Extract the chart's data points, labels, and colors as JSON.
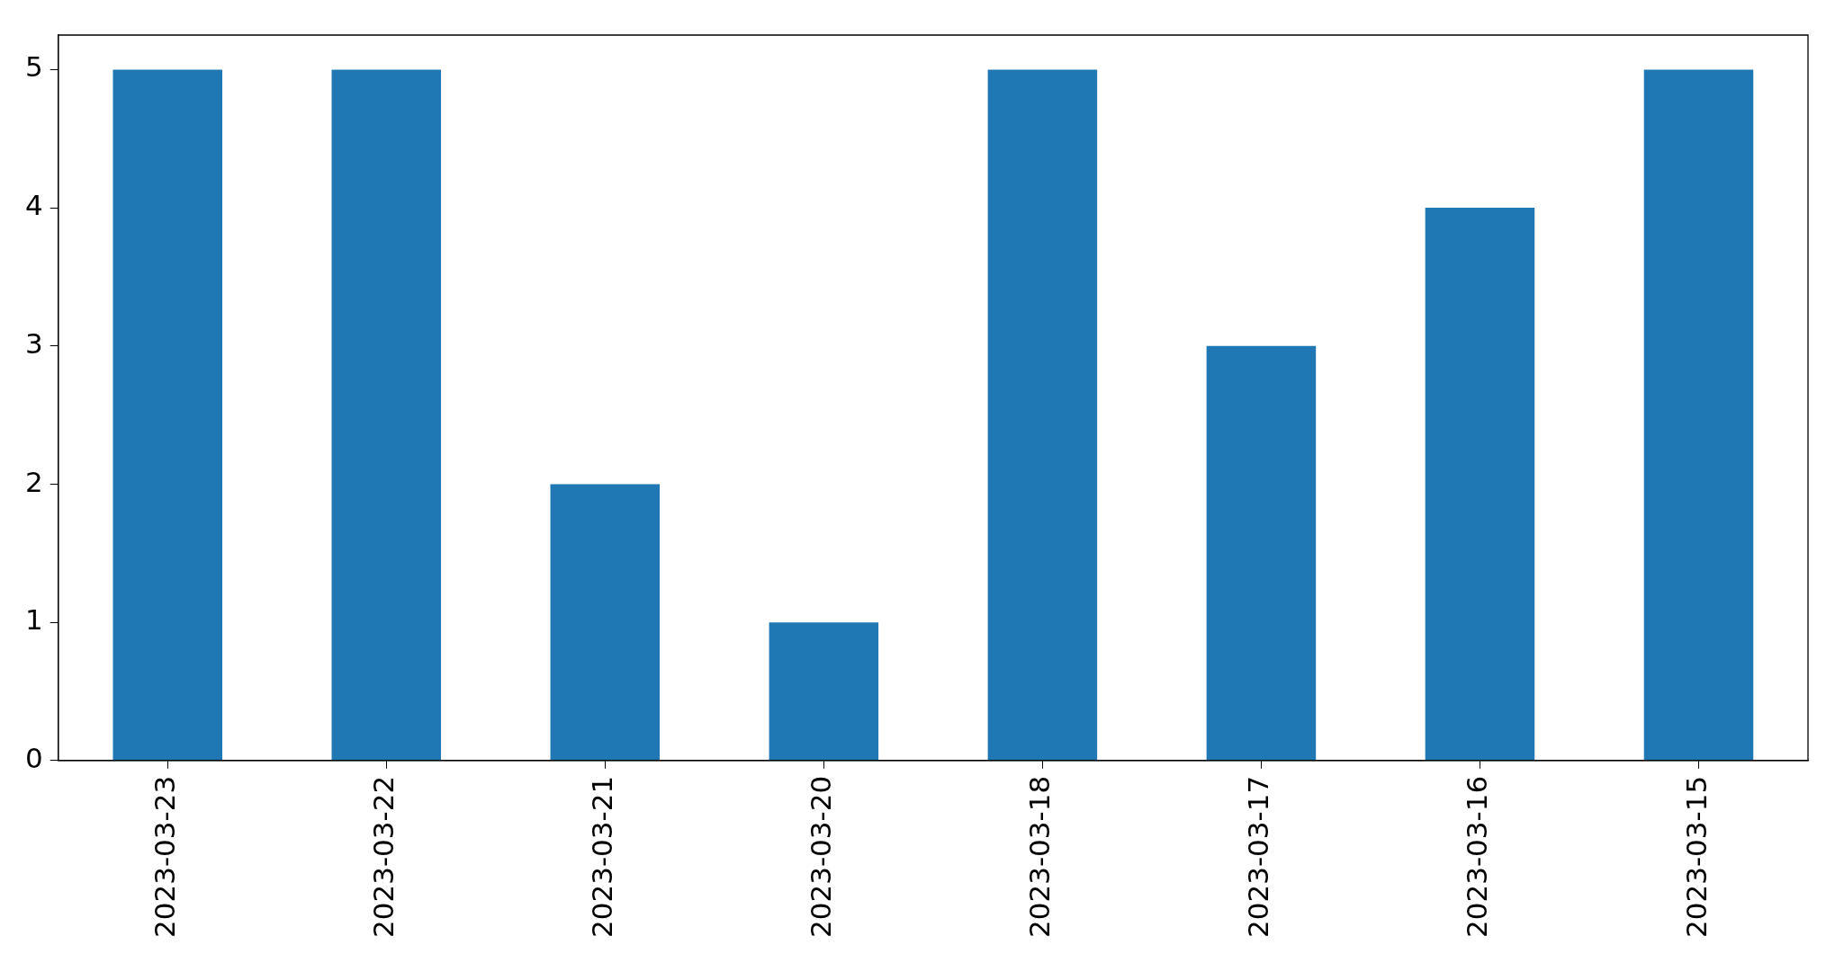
{
  "chart_data": {
    "type": "bar",
    "categories": [
      "2023-03-23",
      "2023-03-22",
      "2023-03-21",
      "2023-03-20",
      "2023-03-18",
      "2023-03-17",
      "2023-03-16",
      "2023-03-15"
    ],
    "values": [
      5,
      5,
      2,
      1,
      5,
      3,
      4,
      5
    ],
    "color": "#1f77b4",
    "ylim": [
      0,
      5.25
    ],
    "yticks": [
      0,
      1,
      2,
      3,
      4,
      5
    ],
    "grid": false,
    "legend": false
  }
}
